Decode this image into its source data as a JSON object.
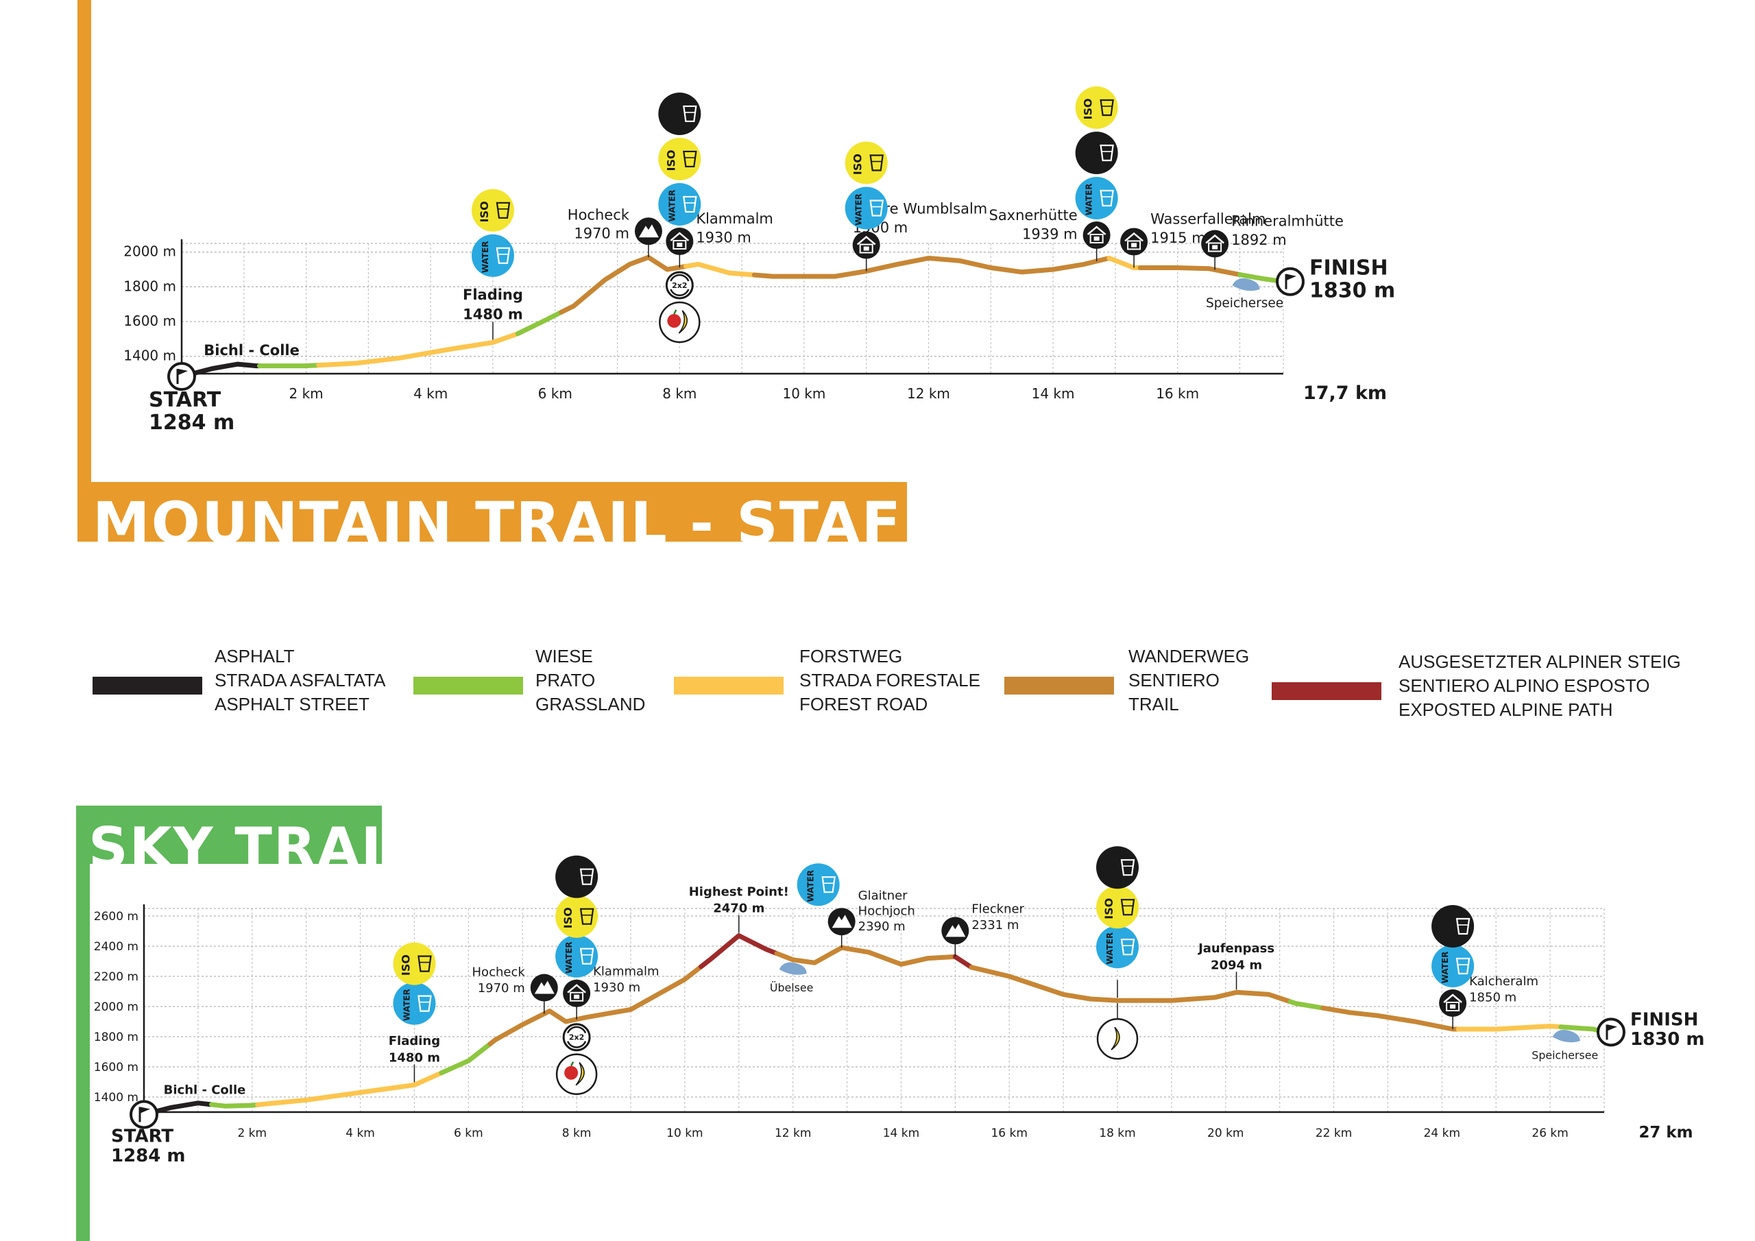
{
  "colors": {
    "asphalt": "#231f20",
    "grassland": "#8dc63f",
    "forest_road": "#fcc54e",
    "trail": "#c78634",
    "alpine": "#9e2a2b",
    "mountain_accent": "#e89a2b",
    "sky_accent": "#5fb85a",
    "water": "#29a9e0",
    "iso": "#f2e52e",
    "cola": "#1a1a1a",
    "lake": "#7ea6cf"
  },
  "mountain": {
    "title": "MOUNTAIN TRAIL - STAFFEL",
    "start_label": "START",
    "start_elev": "1284 m",
    "finish_label": "FINISH",
    "finish_elev": "1830 m",
    "total_km": "17,7 km",
    "chart_data": {
      "type": "line",
      "x_range": [
        0,
        17.7
      ],
      "y_range": [
        1300,
        2050
      ],
      "y_ticks": [
        "1400 m",
        "1600 m",
        "1800 m",
        "2000 m"
      ],
      "x_ticks": [
        "2 km",
        "4 km",
        "6 km",
        "8 km",
        "10 km",
        "12 km",
        "14 km",
        "16 km"
      ],
      "profile": [
        [
          0,
          1284
        ],
        [
          0.5,
          1330
        ],
        [
          0.9,
          1355
        ],
        [
          1.2,
          1345
        ],
        [
          2,
          1345
        ],
        [
          2.8,
          1360
        ],
        [
          3.5,
          1390
        ],
        [
          4.3,
          1440
        ],
        [
          5,
          1480
        ],
        [
          5.4,
          1530
        ],
        [
          5.8,
          1600
        ],
        [
          6.3,
          1690
        ],
        [
          6.8,
          1840
        ],
        [
          7.2,
          1930
        ],
        [
          7.5,
          1970
        ],
        [
          7.8,
          1900
        ],
        [
          8.3,
          1930
        ],
        [
          8.8,
          1880
        ],
        [
          9.5,
          1860
        ],
        [
          10.5,
          1860
        ],
        [
          11,
          1890
        ],
        [
          11.5,
          1930
        ],
        [
          12,
          1965
        ],
        [
          12.5,
          1950
        ],
        [
          13,
          1910
        ],
        [
          13.5,
          1885
        ],
        [
          14,
          1900
        ],
        [
          14.5,
          1930
        ],
        [
          14.9,
          1965
        ],
        [
          15.3,
          1910
        ],
        [
          16,
          1910
        ],
        [
          16.5,
          1905
        ],
        [
          17,
          1870
        ],
        [
          17.4,
          1845
        ],
        [
          17.7,
          1830
        ]
      ],
      "surfaces": [
        {
          "type": "asphalt",
          "from": 0,
          "to": 1.25
        },
        {
          "type": "grassland",
          "from": 1.25,
          "to": 2.2
        },
        {
          "type": "forest_road",
          "from": 2.2,
          "to": 5.4
        },
        {
          "type": "grassland",
          "from": 5.4,
          "to": 6.1
        },
        {
          "type": "trail",
          "from": 6.1,
          "to": 8.1
        },
        {
          "type": "forest_road",
          "from": 8.1,
          "to": 9.2
        },
        {
          "type": "trail",
          "from": 9.2,
          "to": 14.9
        },
        {
          "type": "forest_road",
          "from": 14.9,
          "to": 15.4
        },
        {
          "type": "trail",
          "from": 15.4,
          "to": 17.0
        },
        {
          "type": "grassland",
          "from": 17.0,
          "to": 17.7
        }
      ],
      "waypoints": [
        {
          "name": "Bichl - Colle",
          "elev": "",
          "km": 0.3,
          "icon": "none",
          "stack": []
        },
        {
          "name": "Flading",
          "elev": "1480 m",
          "km": 5,
          "icon": "none",
          "stack": [
            "water",
            "iso"
          ]
        },
        {
          "name": "Hocheck",
          "elev": "1970 m",
          "km": 7.5,
          "icon": "peak",
          "stack": []
        },
        {
          "name": "Klammalm",
          "elev": "1930 m",
          "km": 8,
          "icon": "hut",
          "stack": [
            "water",
            "iso",
            "cola"
          ],
          "relay": "2x2",
          "food": true
        },
        {
          "name": "Innere Wumblsalm",
          "elev": "1900 m",
          "km": 11,
          "icon": "hut",
          "stack": [
            "water",
            "iso"
          ]
        },
        {
          "name": "Saxnerhütte",
          "elev": "1939 m",
          "km": 14.7,
          "icon": "hut",
          "stack": [
            "water",
            "cola",
            "iso"
          ]
        },
        {
          "name": "Wasserfalleralm",
          "elev": "1915 m",
          "km": 15.3,
          "icon": "hut",
          "stack": []
        },
        {
          "name": "Rinneralmhütte",
          "elev": "1892 m",
          "km": 16.6,
          "icon": "hut",
          "stack": []
        }
      ],
      "lake": {
        "name": "Speichersee",
        "km": 17.1
      }
    }
  },
  "legend": [
    {
      "type": "asphalt",
      "lines": [
        "ASPHALT",
        "STRADA ASFALTATA",
        "ASPHALT STREET"
      ]
    },
    {
      "type": "grassland",
      "lines": [
        "WIESE",
        "PRATO",
        "GRASSLAND"
      ]
    },
    {
      "type": "forest_road",
      "lines": [
        "FORSTWEG",
        "STRADA FORESTALE",
        "FOREST ROAD"
      ]
    },
    {
      "type": "trail",
      "lines": [
        "WANDERWEG",
        "SENTIERO",
        "TRAIL"
      ]
    },
    {
      "type": "alpine",
      "lines": [
        "AUSGESETZTER ALPINER STEIG",
        "SENTIERO ALPINO ESPOSTO",
        "EXPOSTED ALPINE PATH"
      ]
    }
  ],
  "sky": {
    "title": "SKY TRAIL",
    "start_label": "START",
    "start_elev": "1284 m",
    "finish_label": "FINISH",
    "finish_elev": "1830 m",
    "total_km": "27 km",
    "chart_data": {
      "type": "line",
      "x_range": [
        0,
        27
      ],
      "y_range": [
        1300,
        2650
      ],
      "y_ticks": [
        "1400 m",
        "1600 m",
        "1800 m",
        "2000 m",
        "2200 m",
        "2400 m",
        "2600 m"
      ],
      "x_ticks": [
        "2 km",
        "4 km",
        "6 km",
        "8 km",
        "10 km",
        "12 km",
        "14 km",
        "16 km",
        "18 km",
        "20 km",
        "22 km",
        "24 km",
        "26 km"
      ],
      "profile": [
        [
          0,
          1284
        ],
        [
          0.5,
          1330
        ],
        [
          1,
          1360
        ],
        [
          1.5,
          1340
        ],
        [
          2,
          1345
        ],
        [
          3,
          1380
        ],
        [
          4,
          1430
        ],
        [
          5,
          1480
        ],
        [
          5.5,
          1560
        ],
        [
          6,
          1640
        ],
        [
          6.5,
          1780
        ],
        [
          7,
          1880
        ],
        [
          7.5,
          1970
        ],
        [
          7.8,
          1900
        ],
        [
          8.2,
          1930
        ],
        [
          9,
          1980
        ],
        [
          10,
          2180
        ],
        [
          10.5,
          2320
        ],
        [
          11,
          2470
        ],
        [
          11.5,
          2380
        ],
        [
          12,
          2310
        ],
        [
          12.4,
          2290
        ],
        [
          12.9,
          2390
        ],
        [
          13.4,
          2360
        ],
        [
          14,
          2280
        ],
        [
          14.5,
          2320
        ],
        [
          15,
          2330
        ],
        [
          15.3,
          2260
        ],
        [
          16,
          2200
        ],
        [
          17,
          2080
        ],
        [
          17.5,
          2050
        ],
        [
          18,
          2040
        ],
        [
          19,
          2040
        ],
        [
          19.8,
          2060
        ],
        [
          20.2,
          2094
        ],
        [
          20.8,
          2080
        ],
        [
          21.3,
          2020
        ],
        [
          21.8,
          1990
        ],
        [
          22.3,
          1960
        ],
        [
          22.8,
          1940
        ],
        [
          23.5,
          1900
        ],
        [
          24.2,
          1850
        ],
        [
          25,
          1850
        ],
        [
          26,
          1870
        ],
        [
          26.8,
          1850
        ],
        [
          27,
          1830
        ]
      ],
      "surfaces": [
        {
          "type": "asphalt",
          "from": 0,
          "to": 1.25
        },
        {
          "type": "grassland",
          "from": 1.25,
          "to": 2.1
        },
        {
          "type": "forest_road",
          "from": 2.1,
          "to": 5.5
        },
        {
          "type": "grassland",
          "from": 5.5,
          "to": 6.4
        },
        {
          "type": "trail",
          "from": 6.4,
          "to": 10.3
        },
        {
          "type": "alpine",
          "from": 10.3,
          "to": 11.7
        },
        {
          "type": "trail",
          "from": 11.7,
          "to": 15
        },
        {
          "type": "alpine",
          "from": 15,
          "to": 15.3
        },
        {
          "type": "trail",
          "from": 15.3,
          "to": 21.2
        },
        {
          "type": "grassland",
          "from": 21.2,
          "to": 21.8
        },
        {
          "type": "trail",
          "from": 21.8,
          "to": 24.3
        },
        {
          "type": "forest_road",
          "from": 24.3,
          "to": 26.2
        },
        {
          "type": "grassland",
          "from": 26.2,
          "to": 27
        }
      ],
      "waypoints": [
        {
          "name": "Bichl - Colle",
          "elev": "",
          "km": 0.3,
          "icon": "none",
          "stack": []
        },
        {
          "name": "Flading",
          "elev": "1480 m",
          "km": 5,
          "icon": "none",
          "stack": [
            "water",
            "iso"
          ]
        },
        {
          "name": "Hocheck",
          "elev": "1970 m",
          "km": 7.4,
          "icon": "peak",
          "stack": []
        },
        {
          "name": "Klammalm",
          "elev": "1930 m",
          "km": 8,
          "icon": "hut",
          "stack": [
            "water",
            "iso",
            "cola"
          ],
          "relay": "2x2",
          "food": true
        },
        {
          "name": "Highest Point!",
          "elev": "2470 m",
          "km": 11,
          "icon": "none",
          "stack": []
        },
        {
          "name": "Glaitner Hochjoch",
          "elev": "2390 m",
          "km": 12.9,
          "icon": "peak",
          "stack": [
            "water"
          ]
        },
        {
          "name": "Fleckner",
          "elev": "2331 m",
          "km": 15,
          "icon": "peak",
          "stack": []
        },
        {
          "name": "",
          "elev": "",
          "km": 18,
          "icon": "none",
          "stack": [
            "water",
            "iso",
            "cola"
          ],
          "banana": true
        },
        {
          "name": "Jaufenpass",
          "elev": "2094 m",
          "km": 20.2,
          "icon": "none",
          "stack": []
        },
        {
          "name": "Kalcheralm",
          "elev": "1850 m",
          "km": 24.2,
          "icon": "hut",
          "stack": [
            "water",
            "cola"
          ]
        }
      ],
      "lakes": [
        {
          "name": "Übelsee",
          "km": 12
        },
        {
          "name": "Speichersee",
          "km": 26.3
        }
      ]
    }
  },
  "icons": {
    "water": "WATER",
    "iso": "ISO",
    "cola": "COLA"
  }
}
